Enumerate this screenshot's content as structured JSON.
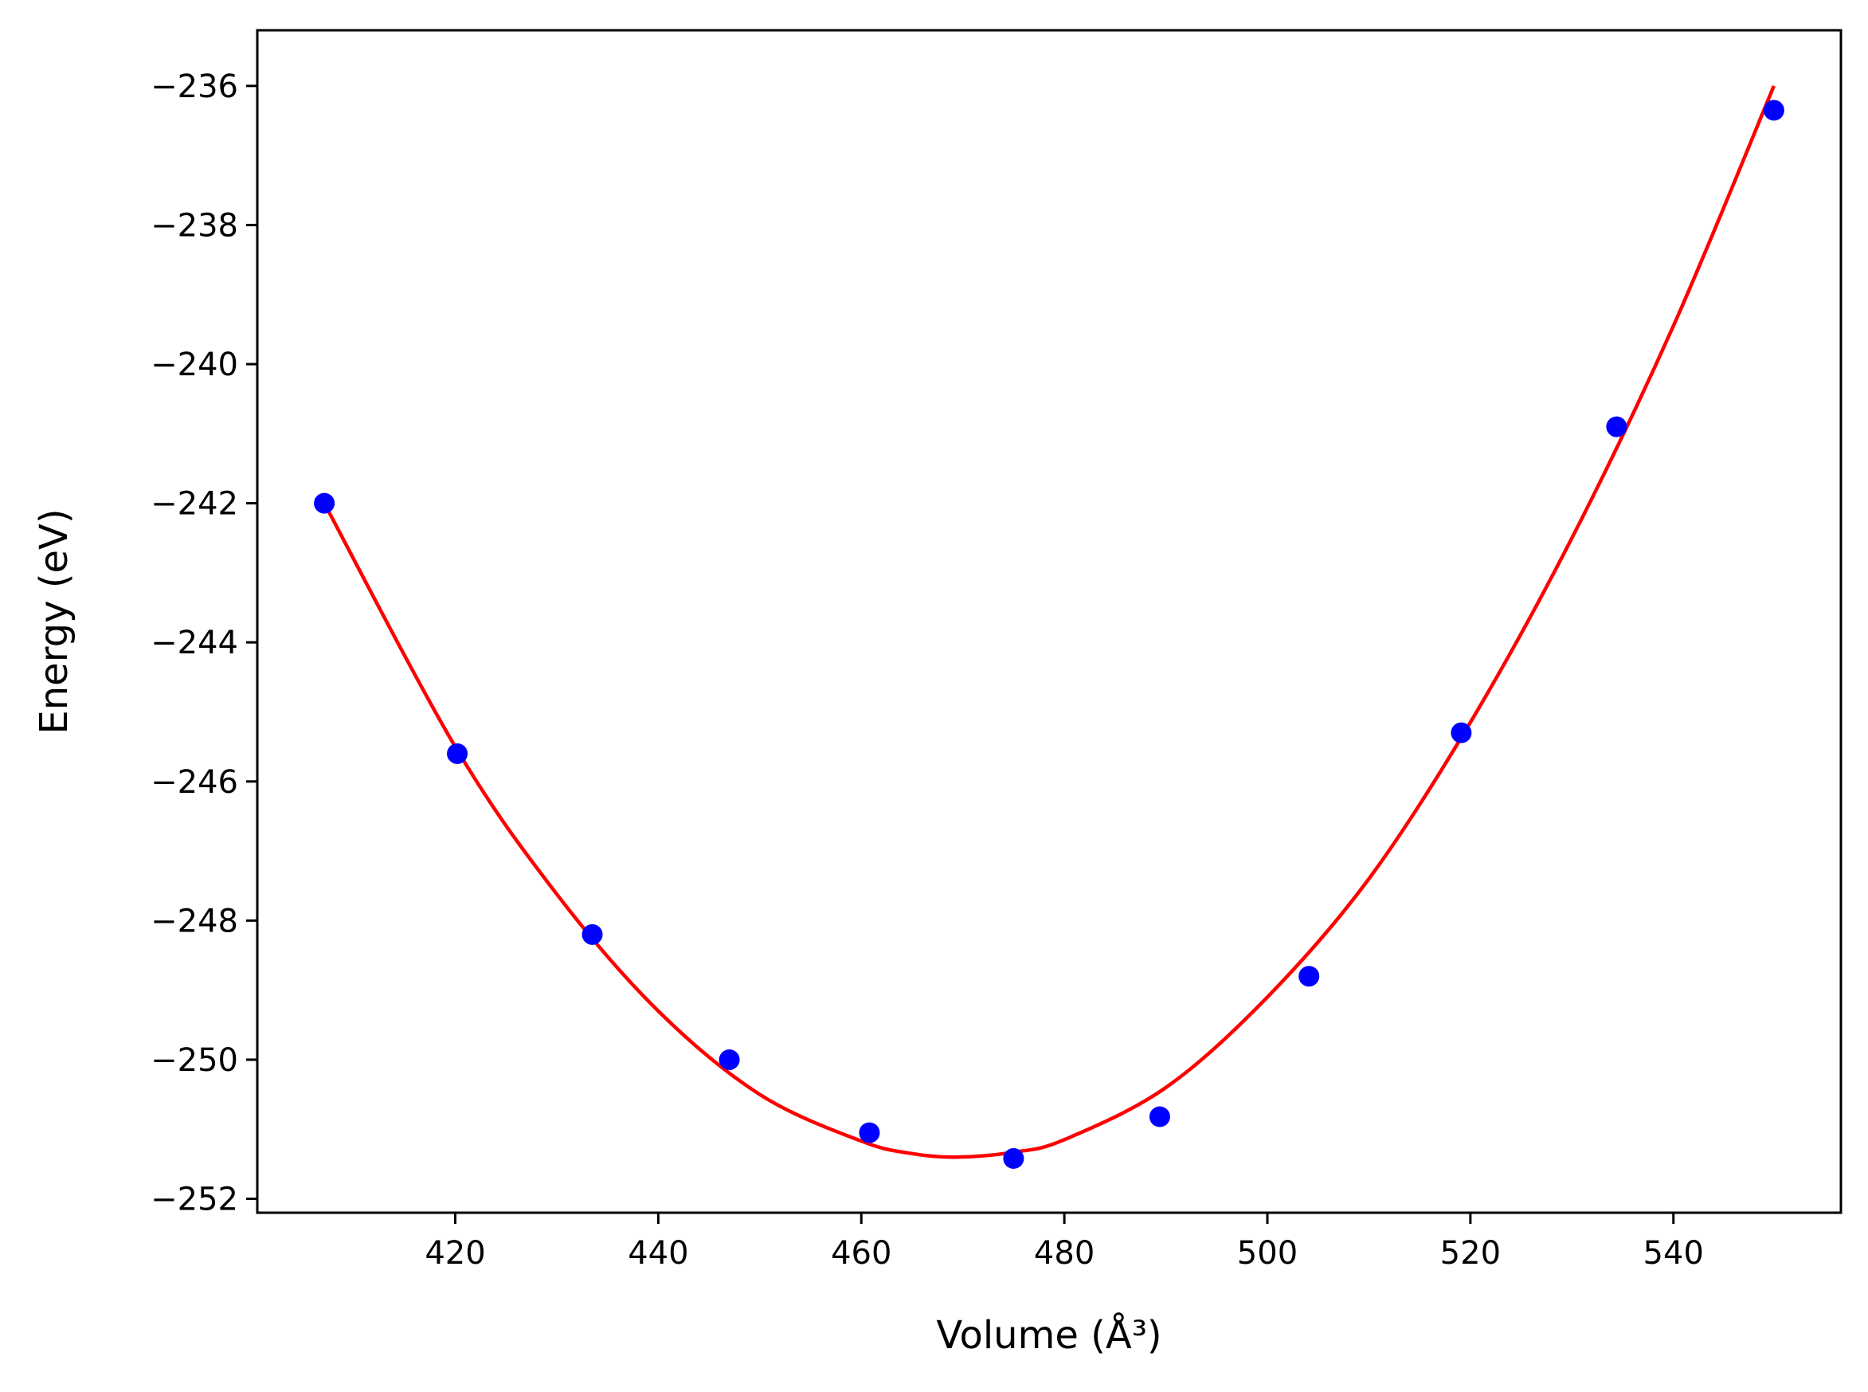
{
  "chart_data": {
    "type": "scatter",
    "title": "",
    "xlabel": "Volume (Å³)",
    "ylabel": "Energy (eV)",
    "xlim": [
      400.5,
      556.5
    ],
    "ylim": [
      -252.2,
      -235.2
    ],
    "xticks": [
      420,
      440,
      460,
      480,
      500,
      520,
      540
    ],
    "yticks": [
      -252,
      -250,
      -248,
      -246,
      -244,
      -242,
      -240,
      -238,
      -236
    ],
    "xtick_labels": [
      "420",
      "440",
      "460",
      "480",
      "500",
      "520",
      "540"
    ],
    "ytick_labels": [
      "−252",
      "−250",
      "−248",
      "−246",
      "−244",
      "−242",
      "−240",
      "−238",
      "−236"
    ],
    "grid": false,
    "series": [
      {
        "kind": "scatter",
        "color": "#0000ff",
        "x": [
          407.1,
          420.2,
          433.5,
          447.0,
          460.8,
          475.0,
          489.4,
          504.1,
          519.1,
          534.4,
          549.9
        ],
        "y": [
          -242.0,
          -245.6,
          -248.2,
          -250.0,
          -251.05,
          -251.42,
          -250.82,
          -248.8,
          -245.3,
          -240.9,
          -236.35
        ]
      },
      {
        "kind": "line",
        "color": "#ff0000",
        "x": [
          407.1,
          420,
          430,
          440,
          450,
          460,
          465,
          469.5,
          475,
          480,
          490,
          500,
          510,
          520,
          530,
          540,
          549.9
        ],
        "y": [
          -242.0,
          -245.5,
          -247.62,
          -249.3,
          -250.5,
          -251.17,
          -251.35,
          -251.4,
          -251.33,
          -251.15,
          -250.4,
          -249.1,
          -247.4,
          -245.15,
          -242.5,
          -239.45,
          -236.0
        ]
      }
    ]
  }
}
